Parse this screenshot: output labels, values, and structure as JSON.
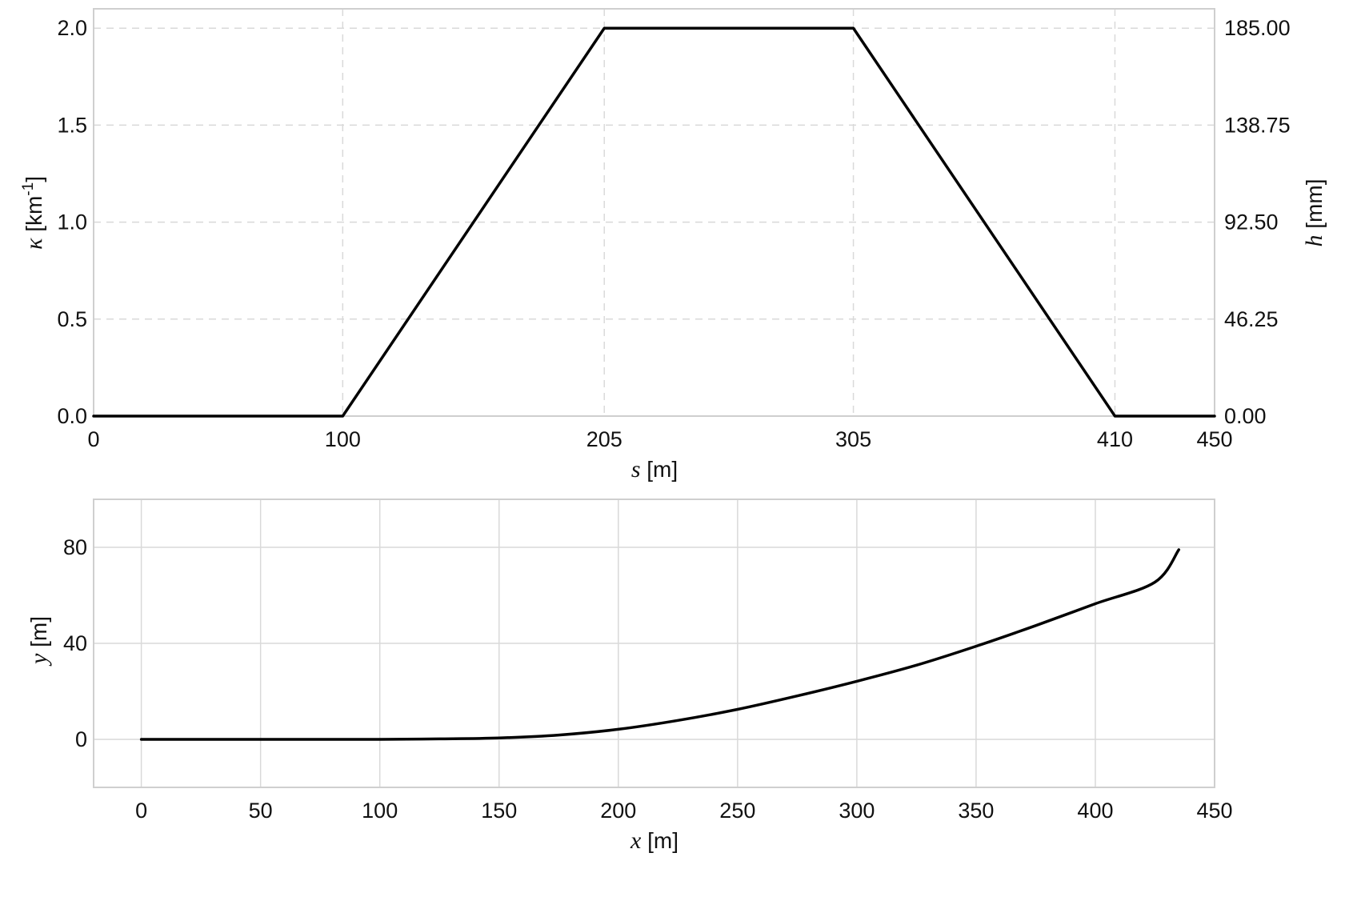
{
  "chart_data": [
    {
      "type": "line",
      "x": [
        0,
        100,
        205,
        305,
        410,
        450
      ],
      "series": [
        {
          "values": [
            0.0,
            0.0,
            2.0,
            2.0,
            0.0,
            0.0
          ]
        }
      ],
      "xlabel": {
        "var": "s",
        "unit": "[m]"
      },
      "ylabel": {
        "var": "κ",
        "unit": "[km",
        "sup": "-1",
        "close": "]"
      },
      "y2label": {
        "var": "h",
        "unit": "[mm]"
      },
      "xlim": [
        0,
        450
      ],
      "ylim": [
        0,
        2.1
      ],
      "y2lim": [
        0,
        194.25
      ],
      "xticks": [
        "0",
        "100",
        "205",
        "305",
        "410",
        "450"
      ],
      "yticks": [
        "0.0",
        "0.5",
        "1.0",
        "1.5",
        "2.0"
      ],
      "y2ticks": [
        "0.00",
        "46.25",
        "92.50",
        "138.75",
        "185.00"
      ],
      "grid": true,
      "grid_style": "dashed"
    },
    {
      "type": "line",
      "x": [
        0,
        50,
        100,
        125,
        150,
        175,
        200,
        225,
        250,
        275,
        300,
        325,
        350,
        375,
        400,
        425,
        435
      ],
      "series": [
        {
          "values": [
            0,
            0,
            0,
            0.2,
            0.6,
            1.8,
            4.2,
            7.9,
            12.5,
            18.1,
            24.2,
            30.9,
            38.8,
            47.4,
            56.5,
            65.5,
            79
          ]
        }
      ],
      "xlabel": {
        "var": "x",
        "unit": "[m]"
      },
      "ylabel": {
        "var": "y",
        "unit": "[m]"
      },
      "xlim": [
        -20,
        450
      ],
      "ylim": [
        -20,
        100
      ],
      "xticks": [
        "0",
        "50",
        "100",
        "150",
        "200",
        "250",
        "300",
        "350",
        "400",
        "450"
      ],
      "yticks": [
        "0",
        "40",
        "80"
      ],
      "grid": true,
      "grid_style": "solid"
    }
  ]
}
